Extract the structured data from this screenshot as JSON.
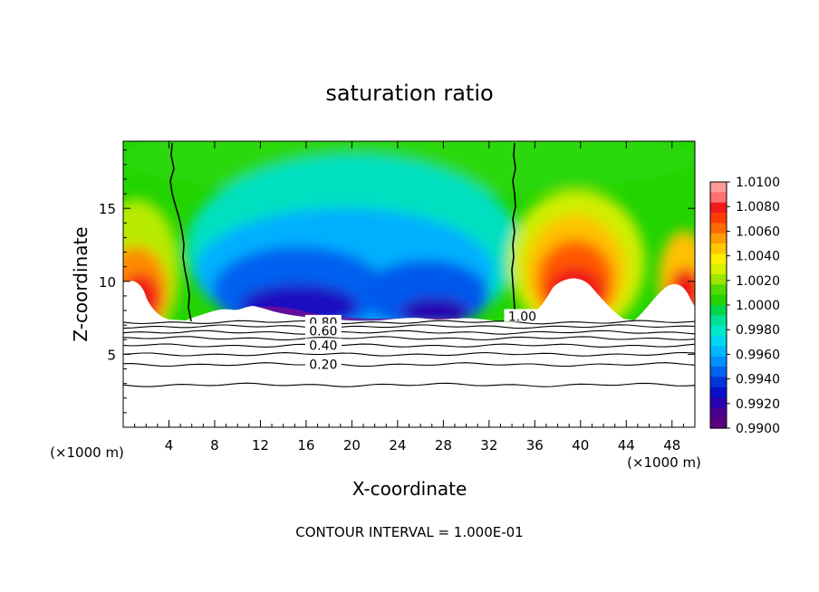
{
  "chart_data": {
    "type": "heatmap",
    "title": "saturation ratio",
    "xlabel": "X-coordinate",
    "ylabel": "Z-coordinate",
    "x_unit_left": "(×1000 m)",
    "x_unit_right": "(×1000 m)",
    "xlim": [
      0,
      50
    ],
    "ylim": [
      0,
      19.6
    ],
    "x_ticks": [
      4,
      8,
      12,
      16,
      20,
      24,
      28,
      32,
      36,
      40,
      44,
      48
    ],
    "y_ticks": [
      5,
      10,
      15
    ],
    "footer": "CONTOUR INTERVAL = 1.000E-01",
    "colorbar": {
      "labels": [
        "1.0100",
        "1.0080",
        "1.0060",
        "1.0040",
        "1.0020",
        "1.0000",
        "0.9980",
        "0.9960",
        "0.9940",
        "0.9920",
        "0.9900"
      ],
      "colors": [
        "#ff9a9a",
        "#ff7070",
        "#f51a1a",
        "#ff3c00",
        "#ff6a00",
        "#ff9c00",
        "#ffc800",
        "#ffee00",
        "#d8f000",
        "#9ce600",
        "#50dc00",
        "#24d200",
        "#00d64a",
        "#00e096",
        "#00e8c8",
        "#00d8f0",
        "#00b8ff",
        "#0090ff",
        "#0064f0",
        "#0036dc",
        "#0a10c8",
        "#2800b0",
        "#4a0090",
        "#5a0080"
      ]
    },
    "contour_labels": [
      {
        "text": "1.00",
        "x": 34.9,
        "z": 7.6
      },
      {
        "text": "0.80",
        "x": 17.5,
        "z": 7.2
      },
      {
        "text": "0.60",
        "x": 17.5,
        "z": 6.6
      },
      {
        "text": "0.40",
        "x": 17.5,
        "z": 5.6
      },
      {
        "text": "0.20",
        "x": 17.5,
        "z": 4.3
      }
    ],
    "cloud_base_z": 7.2,
    "contour_levels_below": [
      7.2,
      6.9,
      6.5,
      6.1,
      5.6,
      5.0,
      4.3,
      2.9
    ]
  }
}
